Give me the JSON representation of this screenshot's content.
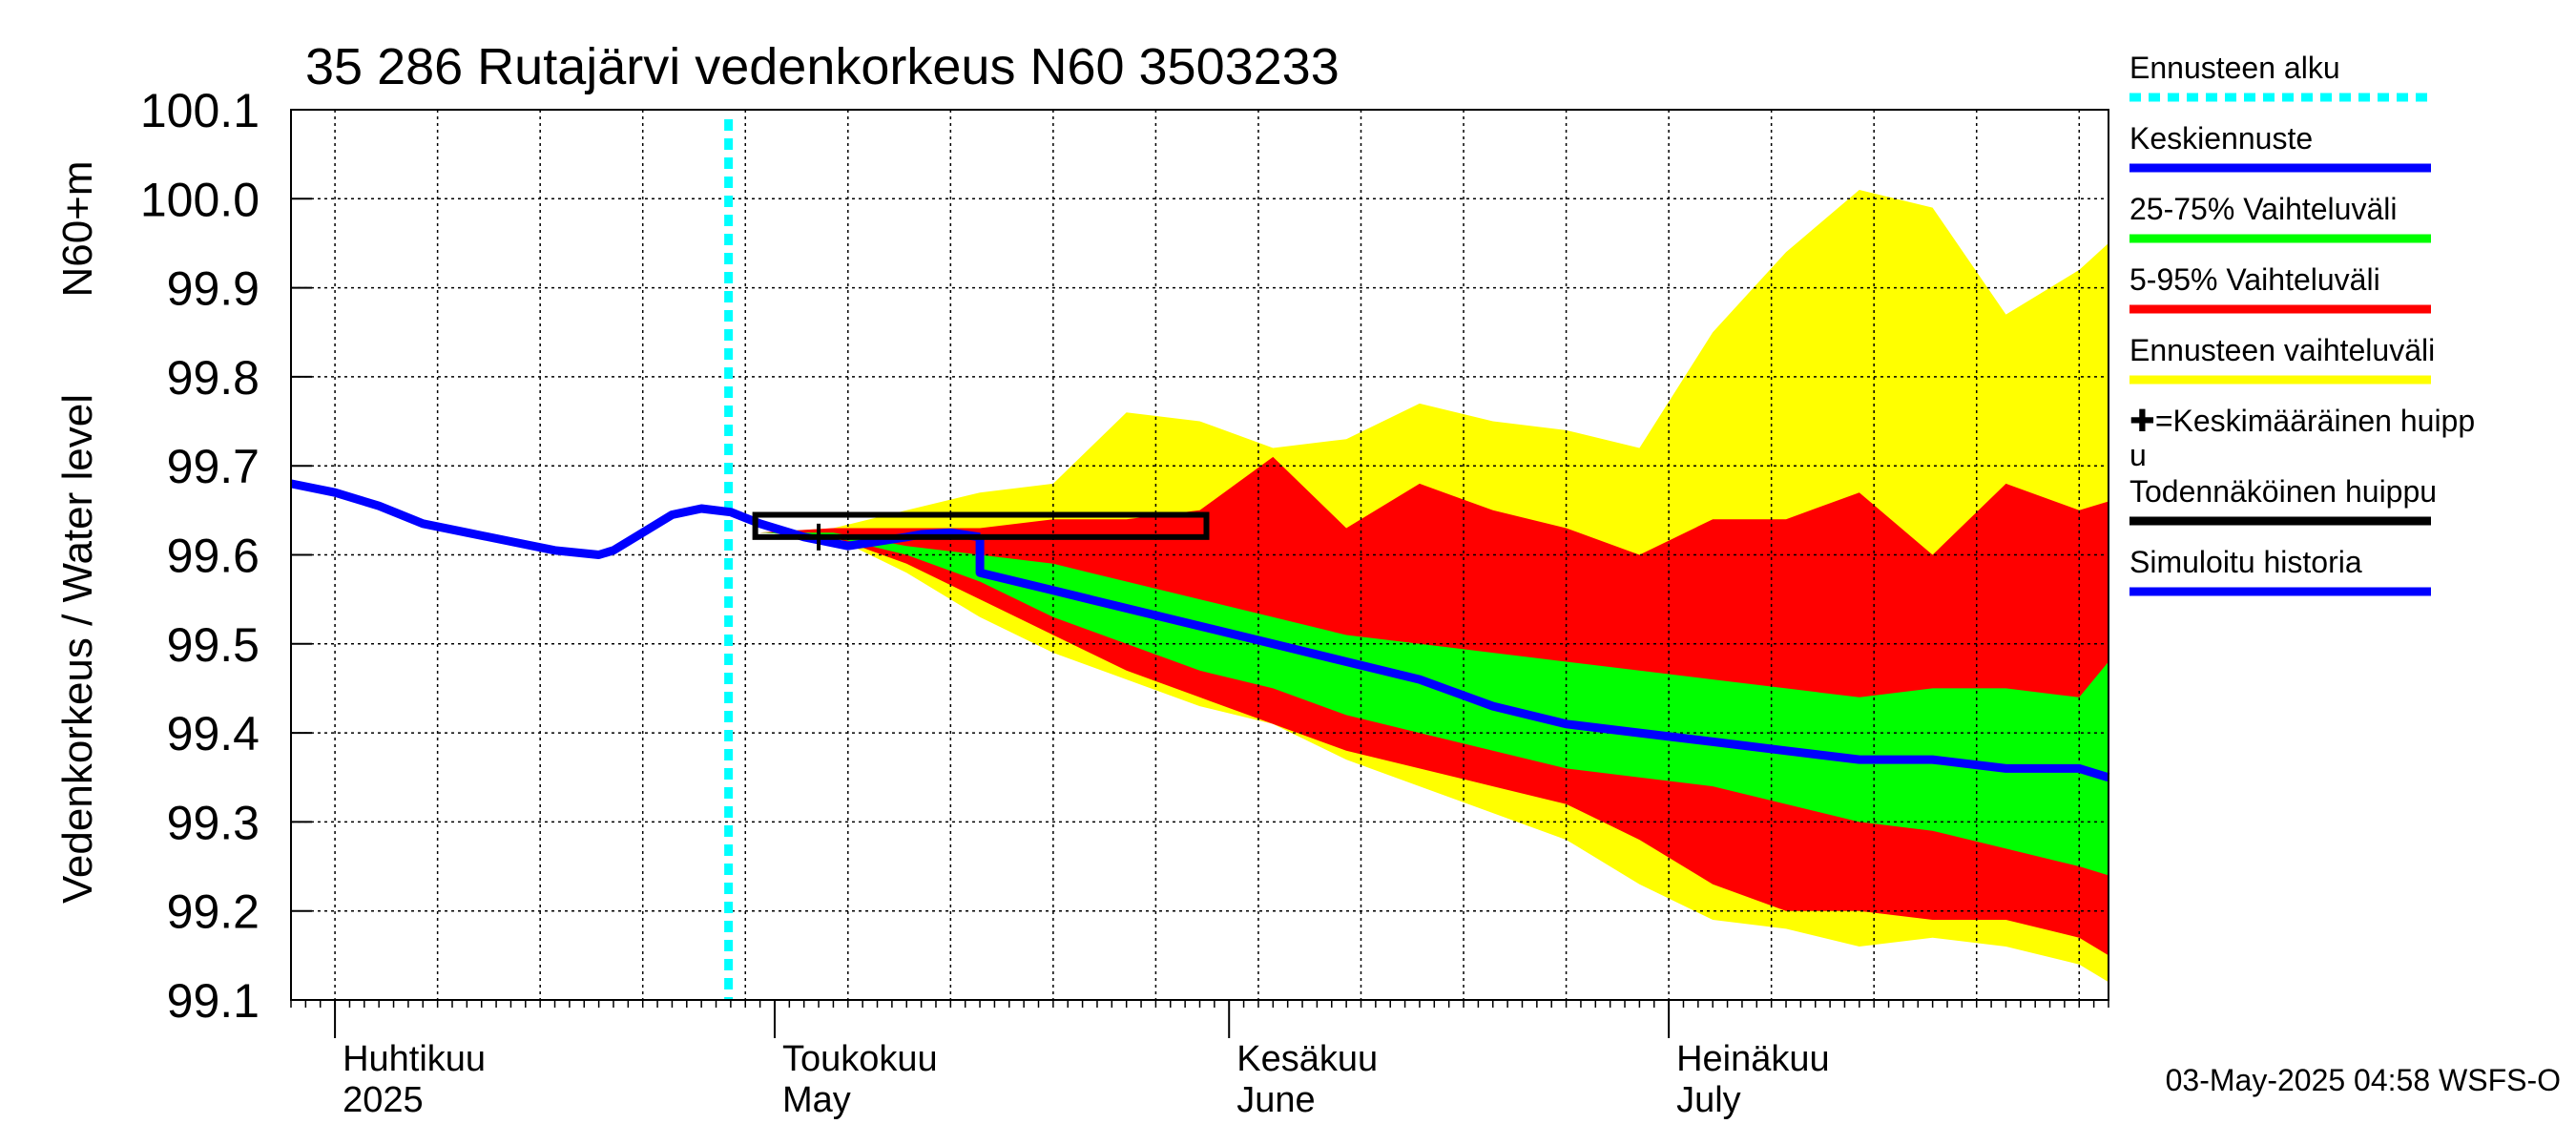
{
  "chart_data": {
    "type": "area",
    "title": "35 286 Rutajärvi vedenkorkeus N60 3503233",
    "ylabel": "Vedenkorkeus / Water level",
    "ylabel2": "N60+m",
    "ylim": [
      99.1,
      100.1
    ],
    "yticks": [
      "100.1",
      "100.0",
      "99.9",
      "99.8",
      "99.7",
      "99.6",
      "99.5",
      "99.4",
      "99.3",
      "99.2",
      "99.1"
    ],
    "xlim": [
      "2025-03-29",
      "2025-07-31"
    ],
    "month_labels": [
      {
        "date": "2025-04-01",
        "line1": "Huhtikuu",
        "line2": "2025"
      },
      {
        "date": "2025-05-01",
        "line1": "Toukokuu",
        "line2": "May"
      },
      {
        "date": "2025-06-01",
        "line1": "Kesäkuu",
        "line2": "June"
      },
      {
        "date": "2025-07-01",
        "line1": "Heinäkuu",
        "line2": "July"
      }
    ],
    "forecast_start": "2025-04-30",
    "history": {
      "x": [
        "2025-03-29",
        "2025-04-01",
        "2025-04-04",
        "2025-04-07",
        "2025-04-10",
        "2025-04-13",
        "2025-04-16",
        "2025-04-19",
        "2025-04-20",
        "2025-04-22",
        "2025-04-24",
        "2025-04-26",
        "2025-04-28",
        "2025-04-30",
        "2025-05-03",
        "2025-05-06",
        "2025-05-08",
        "2025-05-10",
        "2025-05-11",
        "2025-05-13",
        "2025-05-15"
      ],
      "y": [
        99.68,
        99.67,
        99.655,
        99.635,
        99.625,
        99.615,
        99.605,
        99.6,
        99.605,
        99.625,
        99.645,
        99.652,
        99.648,
        99.635,
        99.62,
        99.61,
        99.615,
        99.62,
        99.623,
        99.625,
        99.62
      ]
    },
    "forecast_dates": [
      "2025-05-05",
      "2025-05-10",
      "2025-05-15",
      "2025-05-20",
      "2025-05-25",
      "2025-05-30",
      "2025-06-04",
      "2025-06-09",
      "2025-06-14",
      "2025-06-19",
      "2025-06-24",
      "2025-06-29",
      "2025-07-04",
      "2025-07-09",
      "2025-07-14",
      "2025-07-19",
      "2025-07-24",
      "2025-07-29",
      "2025-07-31"
    ],
    "series": [
      {
        "name": "Ennusteen vaihteluväli",
        "color": "#ffff00",
        "upper": [
          99.63,
          99.65,
          99.67,
          99.68,
          99.76,
          99.75,
          99.72,
          99.73,
          99.77,
          99.75,
          99.74,
          99.72,
          99.85,
          99.94,
          100.01,
          99.99,
          99.87,
          99.92,
          99.95
        ],
        "lower": [
          99.62,
          99.58,
          99.53,
          99.49,
          99.46,
          99.43,
          99.41,
          99.37,
          99.34,
          99.31,
          99.28,
          99.23,
          99.19,
          99.18,
          99.16,
          99.17,
          99.16,
          99.14,
          99.12
        ]
      },
      {
        "name": "5-95% Vaihteluväli",
        "color": "#ff0000",
        "upper": [
          99.63,
          99.63,
          99.63,
          99.64,
          99.64,
          99.65,
          99.71,
          99.63,
          99.68,
          99.65,
          99.63,
          99.6,
          99.64,
          99.64,
          99.67,
          99.6,
          99.68,
          99.65,
          99.66
        ],
        "lower": [
          99.62,
          99.59,
          99.55,
          99.51,
          99.47,
          99.44,
          99.41,
          99.38,
          99.36,
          99.34,
          99.32,
          99.28,
          99.23,
          99.2,
          99.2,
          99.19,
          99.19,
          99.17,
          99.15
        ]
      },
      {
        "name": "25-75% Vaihteluväli",
        "color": "#00ff00",
        "upper": [
          99.625,
          99.61,
          99.6,
          99.59,
          99.57,
          99.55,
          99.53,
          99.51,
          99.5,
          99.49,
          99.48,
          99.47,
          99.46,
          99.45,
          99.44,
          99.45,
          99.45,
          99.44,
          99.48
        ],
        "lower": [
          99.62,
          99.6,
          99.57,
          99.53,
          99.5,
          99.47,
          99.45,
          99.42,
          99.4,
          99.38,
          99.36,
          99.35,
          99.34,
          99.32,
          99.3,
          99.29,
          99.27,
          99.25,
          99.24
        ]
      },
      {
        "name": "Keskiennuste",
        "color": "#0000ff",
        "y": [
          99.62,
          99.6,
          99.58,
          99.56,
          99.54,
          99.52,
          99.5,
          99.48,
          99.46,
          99.43,
          99.41,
          99.4,
          99.39,
          99.38,
          99.37,
          99.37,
          99.36,
          99.36,
          99.35
        ]
      }
    ],
    "mean_peak": {
      "date": "2025-05-04",
      "value": 99.62
    },
    "probable_peak": {
      "start": "2025-04-30",
      "end": "2025-05-30",
      "low": 99.62,
      "high": 99.645
    },
    "legend_position": "right",
    "legend": [
      {
        "label": "Ennusteen alku",
        "color": "#00ffff",
        "style": "dotted"
      },
      {
        "label": "Keskiennuste",
        "color": "#0000ff",
        "style": "solid"
      },
      {
        "label": "25-75% Vaihteluväli",
        "color": "#00ff00",
        "style": "solid"
      },
      {
        "label": "5-95% Vaihteluväli",
        "color": "#ff0000",
        "style": "solid"
      },
      {
        "label": "Ennusteen vaihteluväli",
        "color": "#ffff00",
        "style": "solid"
      },
      {
        "label": "✚=Keskimääräinen huipp",
        "label2": "u",
        "color": "",
        "style": "none"
      },
      {
        "label": "Todennäköinen huippu",
        "color": "#000000",
        "style": "solid"
      },
      {
        "label": "Simuloitu historia",
        "color": "#0000ff",
        "style": "solid"
      }
    ],
    "grid": true,
    "timestamp": "03-May-2025 04:58 WSFS-O"
  }
}
